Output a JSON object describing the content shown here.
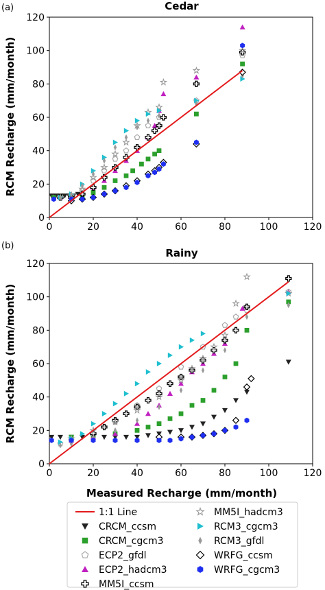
{
  "chart_data": [
    {
      "type": "scatter",
      "panel_label": "(a)",
      "title": "Cedar",
      "xlabel": "",
      "ylabel": "RCM Recharge (mm/month)",
      "xlim": [
        0,
        120
      ],
      "ylim": [
        0,
        120
      ],
      "xticks": [
        "0",
        "20",
        "40",
        "60",
        "80",
        "100",
        "120"
      ],
      "yticks": [
        "0",
        "20",
        "40",
        "60",
        "80",
        "100",
        "120"
      ],
      "series": [
        {
          "name": "1:1 Line",
          "kind": "line",
          "x": [
            0,
            88
          ],
          "y": [
            0,
            88
          ]
        },
        {
          "name": "CRCM_ccsm",
          "x": [
            1,
            3,
            5,
            7,
            9,
            11,
            13
          ],
          "y": [
            13,
            13,
            13,
            13,
            13,
            13,
            14
          ]
        },
        {
          "name": "CRCM_cgcm3",
          "x": [
            2,
            5,
            10,
            15,
            20,
            25,
            30,
            35,
            38,
            42,
            45,
            48,
            50,
            67,
            88
          ],
          "y": [
            12,
            12,
            12,
            13,
            15,
            18,
            22,
            25,
            28,
            32,
            35,
            38,
            40,
            62,
            92
          ]
        },
        {
          "name": "ECP2_gfdl",
          "x": [
            5,
            10,
            15,
            20,
            25,
            30,
            35,
            40,
            45,
            50,
            67,
            88
          ],
          "y": [
            12,
            13,
            16,
            22,
            28,
            35,
            40,
            48,
            55,
            60,
            70,
            97
          ]
        },
        {
          "name": "ECP2_hadcm3",
          "x": [
            5,
            10,
            15,
            20,
            25,
            30,
            35,
            40,
            45,
            48,
            50,
            52,
            67,
            88
          ],
          "y": [
            12,
            13,
            15,
            18,
            22,
            28,
            34,
            40,
            48,
            55,
            64,
            74,
            84,
            114
          ]
        },
        {
          "name": "MM5I_ccsm",
          "x": [
            5,
            10,
            15,
            20,
            25,
            30,
            35,
            40,
            45,
            48,
            50,
            52,
            67,
            88
          ],
          "y": [
            12,
            12,
            14,
            18,
            24,
            30,
            36,
            42,
            48,
            52,
            55,
            60,
            80,
            99
          ]
        },
        {
          "name": "MM5I_hadcm3",
          "x": [
            5,
            10,
            15,
            20,
            25,
            30,
            35,
            40,
            45,
            50,
            52,
            67,
            88
          ],
          "y": [
            12,
            13,
            17,
            24,
            30,
            38,
            45,
            55,
            63,
            66,
            81,
            88,
            100
          ]
        },
        {
          "name": "RCM3_cgcm3",
          "x": [
            5,
            10,
            15,
            20,
            25,
            30,
            35,
            40,
            45,
            50,
            67,
            88
          ],
          "y": [
            12,
            14,
            20,
            28,
            36,
            45,
            52,
            58,
            62,
            64,
            70,
            83
          ]
        },
        {
          "name": "RCM3_gfdl",
          "x": [
            5,
            10,
            15,
            20,
            25,
            30,
            35,
            40,
            45,
            50,
            67,
            88
          ],
          "y": [
            12,
            14,
            19,
            26,
            34,
            42,
            48,
            54,
            58,
            61,
            68,
            85
          ]
        },
        {
          "name": "WRFG_ccsm",
          "x": [
            10,
            15,
            20,
            25,
            30,
            35,
            40,
            45,
            48,
            50,
            52,
            67,
            88
          ],
          "y": [
            10,
            11,
            12,
            14,
            16,
            19,
            22,
            26,
            28,
            30,
            33,
            44,
            87
          ]
        },
        {
          "name": "WRFG_cgcm3",
          "x": [
            2,
            10,
            15,
            20,
            25,
            30,
            35,
            40,
            45,
            48,
            50,
            52,
            67,
            88
          ],
          "y": [
            11,
            11,
            11,
            12,
            14,
            16,
            18,
            21,
            25,
            27,
            29,
            32,
            45,
            103
          ]
        }
      ]
    },
    {
      "type": "scatter",
      "panel_label": "(b)",
      "title": "Rainy",
      "xlabel": "Measured Recharge (mm/month)",
      "ylabel": "RCM Recharge (mm/month)",
      "xlim": [
        0,
        120
      ],
      "ylim": [
        0,
        120
      ],
      "xticks": [
        "0",
        "20",
        "40",
        "60",
        "80",
        "100",
        "120"
      ],
      "yticks": [
        "0",
        "20",
        "40",
        "60",
        "80",
        "100",
        "120"
      ],
      "series": [
        {
          "name": "1:1 Line",
          "kind": "line",
          "x": [
            0,
            109
          ],
          "y": [
            0,
            109
          ]
        },
        {
          "name": "CRCM_ccsm",
          "x": [
            1,
            5,
            10,
            15,
            20,
            25,
            30,
            35,
            40,
            45,
            50,
            55,
            60,
            65,
            70,
            75,
            80,
            85,
            90,
            109
          ],
          "y": [
            16,
            16,
            16,
            16,
            16,
            16,
            16,
            16,
            16,
            17,
            18,
            19,
            20,
            22,
            24,
            28,
            32,
            38,
            43,
            61
          ]
        },
        {
          "name": "CRCM_cgcm3",
          "x": [
            10,
            20,
            30,
            40,
            45,
            50,
            55,
            60,
            65,
            70,
            75,
            80,
            85,
            90,
            109
          ],
          "y": [
            16,
            17,
            18,
            20,
            22,
            24,
            27,
            30,
            35,
            38,
            44,
            52,
            60,
            80,
            97
          ]
        },
        {
          "name": "ECP2_gfdl",
          "x": [
            5,
            10,
            20,
            30,
            40,
            50,
            60,
            70,
            80,
            85,
            90,
            109
          ],
          "y": [
            12,
            14,
            18,
            25,
            35,
            45,
            58,
            70,
            83,
            88,
            92,
            103
          ]
        },
        {
          "name": "ECP2_hadcm3",
          "x": [
            10,
            20,
            30,
            40,
            45,
            50,
            55,
            60,
            65,
            70,
            75,
            80,
            88,
            109
          ],
          "y": [
            14,
            16,
            18,
            24,
            30,
            35,
            42,
            48,
            55,
            60,
            66,
            72,
            93,
            103
          ]
        },
        {
          "name": "MM5I_ccsm",
          "x": [
            20,
            25,
            30,
            35,
            40,
            45,
            50,
            55,
            60,
            65,
            70,
            75,
            80,
            85,
            90,
            109
          ],
          "y": [
            18,
            22,
            26,
            30,
            34,
            38,
            42,
            48,
            52,
            56,
            62,
            68,
            74,
            80,
            94,
            111
          ]
        },
        {
          "name": "MM5I_hadcm3",
          "x": [
            10,
            20,
            30,
            40,
            50,
            60,
            65,
            70,
            75,
            80,
            85,
            90,
            109
          ],
          "y": [
            15,
            20,
            25,
            32,
            40,
            50,
            57,
            63,
            70,
            77,
            96,
            112,
            102
          ]
        },
        {
          "name": "RCM3_cgcm3",
          "x": [
            5,
            10,
            15,
            20,
            25,
            30,
            35,
            40,
            45,
            50,
            55,
            60,
            65,
            70,
            109
          ],
          "y": [
            13,
            15,
            18,
            24,
            30,
            36,
            42,
            48,
            55,
            60,
            65,
            70,
            74,
            78,
            102
          ]
        },
        {
          "name": "RCM3_gfdl",
          "x": [
            5,
            10,
            20,
            30,
            40,
            50,
            60,
            70,
            80,
            90,
            109
          ],
          "y": [
            11,
            12,
            16,
            20,
            26,
            34,
            44,
            56,
            68,
            88,
            95
          ]
        },
        {
          "name": "WRFG_ccsm",
          "x": [
            50,
            60,
            65,
            70,
            75,
            80,
            85,
            90,
            92
          ],
          "y": [
            16,
            16,
            16,
            17,
            18,
            20,
            26,
            46,
            51
          ]
        },
        {
          "name": "WRFG_cgcm3",
          "x": [
            1,
            10,
            20,
            30,
            40,
            50,
            55,
            60,
            65,
            70,
            75,
            80,
            85,
            90
          ],
          "y": [
            14,
            14,
            14,
            14,
            14,
            14,
            14,
            15,
            16,
            17,
            18,
            20,
            22,
            26
          ]
        }
      ]
    }
  ],
  "legend": {
    "position": "bottom",
    "entries": [
      {
        "label": "1:1 Line",
        "marker": "line",
        "color": "#e31a1c"
      },
      {
        "label": "CRCM_ccsm",
        "marker": "triangle-down-icon",
        "color": "#222222"
      },
      {
        "label": "CRCM_cgcm3",
        "marker": "square-icon",
        "color": "#2ca02c"
      },
      {
        "label": "ECP2_gfdl",
        "marker": "pentagon-outline-icon",
        "color": "#aaaaaa"
      },
      {
        "label": "ECP2_hadcm3",
        "marker": "triangle-up-icon",
        "color": "#c020c0"
      },
      {
        "label": "MM5I_ccsm",
        "marker": "plus-outline-icon",
        "color": "#000000"
      },
      {
        "label": "MM5I_hadcm3",
        "marker": "star-outline-icon",
        "color": "#999999"
      },
      {
        "label": "RCM3_cgcm3",
        "marker": "triangle-right-icon",
        "color": "#1fbfcf"
      },
      {
        "label": "RCM3_gfdl",
        "marker": "thin-diamond-icon",
        "color": "#999999"
      },
      {
        "label": "WRFG_ccsm",
        "marker": "diamond-outline-icon",
        "color": "#000000"
      },
      {
        "label": "WRFG_cgcm3",
        "marker": "hexagon-icon",
        "color": "#1f2fef"
      }
    ]
  }
}
